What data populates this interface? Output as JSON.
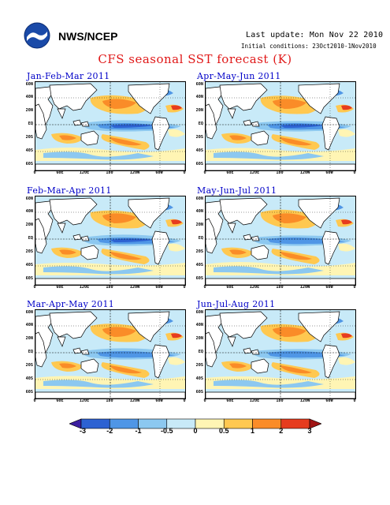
{
  "header": {
    "org_label": "NWS/NCEP",
    "last_update": "Last update: Mon Nov 22 2010",
    "initial_conditions": "Initial conditions: 23Oct2010-1Nov2010",
    "title": "CFS seasonal SST forecast (K)",
    "logo_icon": "noaa-logo-icon"
  },
  "panels": [
    {
      "title": "Jan-Feb-Mar 2011"
    },
    {
      "title": "Apr-May-Jun 2011"
    },
    {
      "title": "Feb-Mar-Apr 2011"
    },
    {
      "title": "May-Jun-Jul 2011"
    },
    {
      "title": "Mar-Apr-May 2011"
    },
    {
      "title": "Jun-Jul-Aug 2011"
    }
  ],
  "axes": {
    "lat_labels": [
      "60N",
      "40N",
      "20N",
      "EQ",
      "20S",
      "40S",
      "60S"
    ],
    "lon_labels": [
      "0",
      "60E",
      "120E",
      "180",
      "120W",
      "60W",
      "0"
    ]
  },
  "colorbar": {
    "labels": [
      "-3",
      "-2",
      "-1",
      "-0.5",
      "0",
      "0.5",
      "1",
      "2",
      "3"
    ],
    "colors": [
      "#3c1ea0",
      "#2d62d2",
      "#4f96e6",
      "#8cc8f0",
      "#c8eaf8",
      "#fff5b4",
      "#ffc850",
      "#fa8c28",
      "#e63c1e",
      "#a01414"
    ]
  }
}
